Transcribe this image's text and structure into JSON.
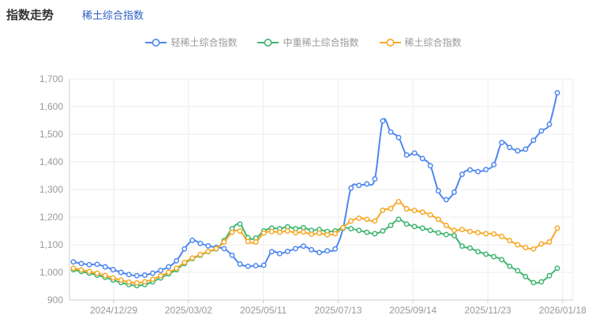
{
  "header": {
    "title": "指数走势",
    "link": "稀土综合指数"
  },
  "colors": {
    "link": "#2B5EC3",
    "title_text": "#333333",
    "axis_text": "#999999",
    "legend_text": "#999999",
    "grid_line": "#EEEEEE",
    "axis_line": "#CCCCCC",
    "background": "#FFFFFF"
  },
  "chart_data": {
    "type": "line",
    "title": "指数走势",
    "smooth": true,
    "grid": true,
    "legend_position": "top-center",
    "marker": "hollow-circle",
    "xlabel": "",
    "ylabel": "",
    "ylim": [
      900,
      1700
    ],
    "y_tick_step": 100,
    "x_labels": [
      "2024/12/29",
      "2025/03/02",
      "2025/05/11",
      "2025/07/13",
      "2025/09/14",
      "2025/11/23",
      "2026/01/18"
    ],
    "series": [
      {
        "name": "轻稀土综合指数",
        "color": "#4C87F0",
        "values": [
          1038,
          1032,
          1028,
          1029,
          1020,
          1010,
          1000,
          992,
          988,
          990,
          997,
          1007,
          1020,
          1042,
          1085,
          1116,
          1105,
          1096,
          1090,
          1086,
          1062,
          1030,
          1022,
          1024,
          1026,
          1075,
          1068,
          1076,
          1086,
          1095,
          1082,
          1072,
          1078,
          1085,
          1160,
          1305,
          1315,
          1320,
          1338,
          1548,
          1508,
          1488,
          1425,
          1432,
          1412,
          1386,
          1295,
          1263,
          1290,
          1355,
          1371,
          1365,
          1372,
          1390,
          1470,
          1452,
          1440,
          1446,
          1478,
          1512,
          1536,
          1650
        ]
      },
      {
        "name": "中重稀土综合指数",
        "color": "#3EB56F",
        "values": [
          1010,
          1003,
          997,
          990,
          982,
          972,
          963,
          956,
          952,
          956,
          966,
          980,
          994,
          1010,
          1032,
          1050,
          1062,
          1075,
          1085,
          1115,
          1158,
          1175,
          1126,
          1124,
          1150,
          1160,
          1158,
          1165,
          1158,
          1162,
          1152,
          1155,
          1148,
          1150,
          1162,
          1158,
          1152,
          1145,
          1140,
          1150,
          1170,
          1192,
          1175,
          1166,
          1160,
          1152,
          1143,
          1137,
          1133,
          1095,
          1088,
          1075,
          1066,
          1057,
          1046,
          1022,
          1006,
          985,
          963,
          966,
          988,
          1015
        ]
      },
      {
        "name": "稀土综合指数",
        "color": "#F7A824",
        "values": [
          1015,
          1009,
          1003,
          997,
          989,
          980,
          972,
          965,
          962,
          966,
          975,
          988,
          1000,
          1015,
          1036,
          1052,
          1064,
          1076,
          1086,
          1110,
          1145,
          1150,
          1112,
          1110,
          1142,
          1148,
          1145,
          1150,
          1143,
          1146,
          1138,
          1142,
          1136,
          1140,
          1162,
          1186,
          1196,
          1192,
          1186,
          1225,
          1231,
          1256,
          1230,
          1224,
          1218,
          1208,
          1192,
          1170,
          1152,
          1155,
          1148,
          1144,
          1140,
          1139,
          1130,
          1115,
          1100,
          1090,
          1085,
          1103,
          1110,
          1160
        ]
      }
    ]
  }
}
